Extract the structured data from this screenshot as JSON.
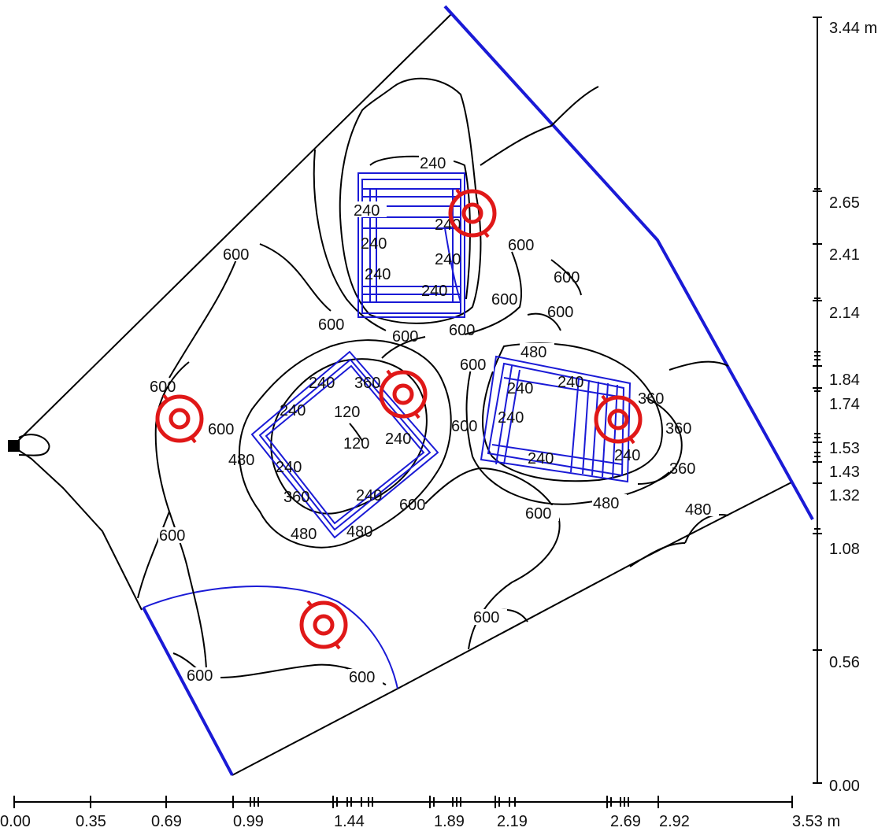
{
  "plan": {
    "y_axis": {
      "unit_label": "3.44 m",
      "ticks": [
        "2.65",
        "2.41",
        "2.14",
        "1.84",
        "1.74",
        "1.53",
        "1.43",
        "1.32",
        "1.08",
        "0.56",
        "0.00"
      ]
    },
    "x_axis": {
      "unit_label": "3.53 m",
      "ticks": [
        "0.00",
        "0.35",
        "0.69",
        "0.99",
        "1.44",
        "1.89",
        "2.19",
        "2.69",
        "2.92"
      ]
    },
    "contour_labels": [
      "240",
      "240",
      "240",
      "240",
      "240",
      "240",
      "240",
      "600",
      "600",
      "600",
      "600",
      "600",
      "600",
      "600",
      "600",
      "600",
      "600",
      "240",
      "360",
      "240",
      "120",
      "120",
      "240",
      "480",
      "240",
      "360",
      "240",
      "600",
      "480",
      "480",
      "600",
      "480",
      "240",
      "240",
      "240",
      "240",
      "360",
      "360",
      "240",
      "360",
      "480",
      "600",
      "480",
      "600",
      "600",
      "600",
      "600",
      "600",
      "600"
    ],
    "colors": {
      "walls": "#1a1ad6",
      "luminaires": "#e01818",
      "contours": "#000000"
    }
  }
}
